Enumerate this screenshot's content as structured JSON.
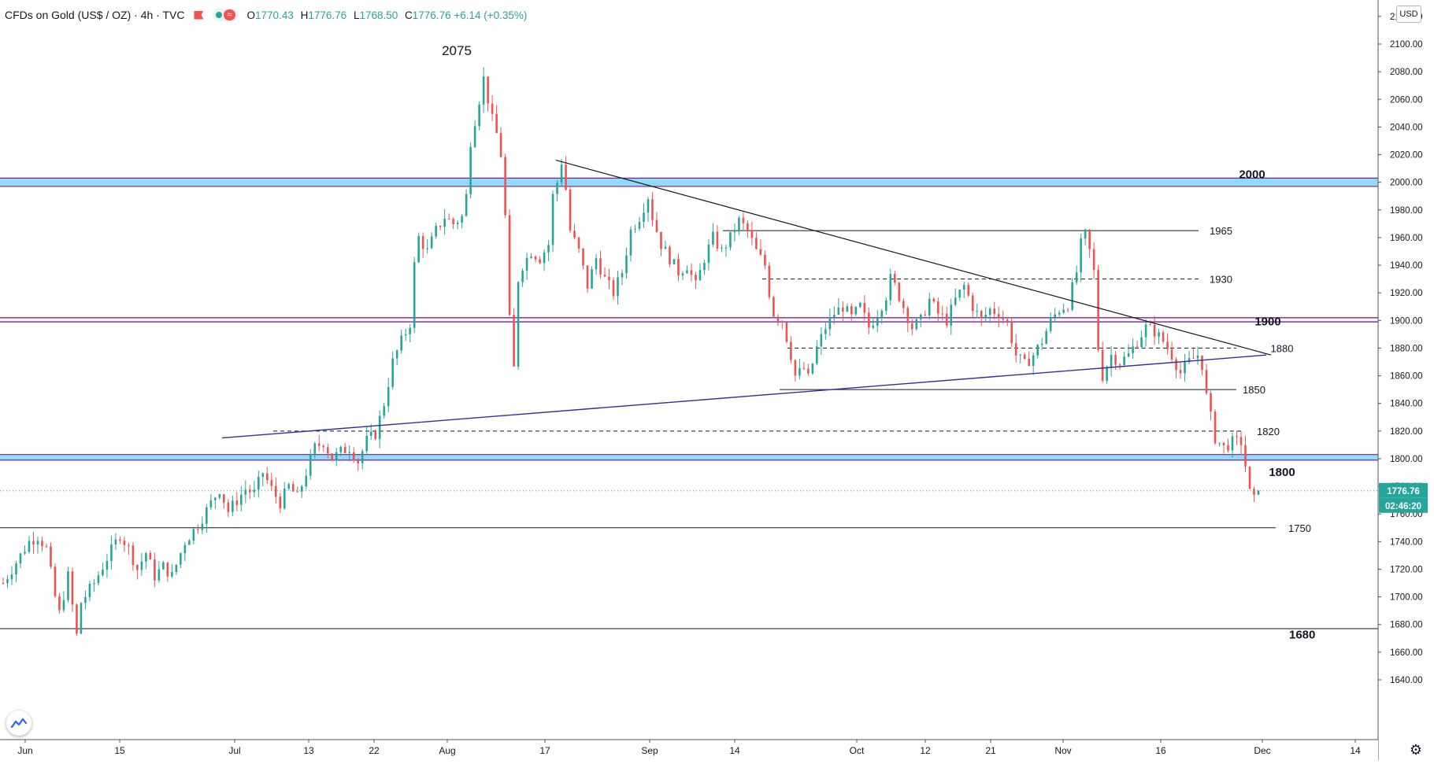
{
  "legend": {
    "symbol": "CFDs on Gold (US$ / OZ) · 4h · TVC",
    "open_label": "O",
    "open": "1770.43",
    "high_label": "H",
    "high": "1776.76",
    "low_label": "L",
    "low": "1768.50",
    "close_label": "C",
    "close": "1776.76",
    "change": "+6.14 (+0.35%)"
  },
  "currency_badge": "USD",
  "price_badge": "1776.76",
  "countdown_badge": "02:46:20",
  "colors": {
    "up": "#26a69a",
    "down": "#ef5350",
    "zone_fill": "#7fd5f5",
    "purple_line": "#7b1fa2",
    "trend_blue": "#2f2f9e",
    "badge_bg": "#26a69a"
  },
  "icons": {
    "logo": "chart-logo-icon",
    "settings": "gear-icon",
    "flag": "flag-icon"
  },
  "chart_data": {
    "type": "candlestick",
    "title": "CFDs on Gold (US$ / OZ)",
    "timeframe": "4h",
    "x_ticks": [
      "Jun",
      "15",
      "Jul",
      "13",
      "22",
      "Aug",
      "17",
      "Sep",
      "14",
      "Oct",
      "12",
      "21",
      "Nov",
      "16",
      "Dec",
      "14"
    ],
    "y_ticks": [
      1640,
      1660,
      1680,
      1700,
      1720,
      1740,
      1760,
      1780,
      1800,
      1820,
      1840,
      1860,
      1880,
      1900,
      1920,
      1940,
      1960,
      1980,
      2000,
      2020,
      2040,
      2060,
      2080,
      2100,
      2120
    ],
    "ylim": [
      1630,
      2125
    ],
    "price_path": [
      [
        0,
        1710
      ],
      [
        3,
        1725
      ],
      [
        6,
        1740
      ],
      [
        8,
        1744
      ],
      [
        10,
        1735
      ],
      [
        12,
        1700
      ],
      [
        13,
        1688
      ],
      [
        15,
        1715
      ],
      [
        17,
        1672
      ],
      [
        18,
        1696
      ],
      [
        21,
        1710
      ],
      [
        24,
        1728
      ],
      [
        27,
        1745
      ],
      [
        29,
        1735
      ],
      [
        31,
        1720
      ],
      [
        33,
        1732
      ],
      [
        35,
        1715
      ],
      [
        37,
        1722
      ],
      [
        39,
        1715
      ],
      [
        42,
        1740
      ],
      [
        45,
        1752
      ],
      [
        48,
        1768
      ],
      [
        50,
        1778
      ],
      [
        52,
        1762
      ],
      [
        54,
        1770
      ],
      [
        56,
        1778
      ],
      [
        58,
        1775
      ],
      [
        60,
        1790
      ],
      [
        62,
        1778
      ],
      [
        64,
        1768
      ],
      [
        66,
        1780
      ],
      [
        68,
        1772
      ],
      [
        70,
        1790
      ],
      [
        72,
        1808
      ],
      [
        74,
        1812
      ],
      [
        76,
        1800
      ],
      [
        78,
        1805
      ],
      [
        80,
        1808
      ],
      [
        82,
        1798
      ],
      [
        84,
        1813
      ],
      [
        86,
        1818
      ],
      [
        88,
        1840
      ],
      [
        90,
        1870
      ],
      [
        92,
        1885
      ],
      [
        94,
        1898
      ],
      [
        95,
        1940
      ],
      [
        96,
        1960
      ],
      [
        98,
        1950
      ],
      [
        100,
        1965
      ],
      [
        102,
        1975
      ],
      [
        104,
        1970
      ],
      [
        106,
        1975
      ],
      [
        107,
        1990
      ],
      [
        108,
        2030
      ],
      [
        109,
        2045
      ],
      [
        110,
        2060
      ],
      [
        111,
        2075
      ],
      [
        112,
        2060
      ],
      [
        113,
        2045
      ],
      [
        114,
        2035
      ],
      [
        115,
        2020
      ],
      [
        116,
        1975
      ],
      [
        117,
        1900
      ],
      [
        118,
        1865
      ],
      [
        119,
        1930
      ],
      [
        120,
        1940
      ],
      [
        122,
        1950
      ],
      [
        124,
        1945
      ],
      [
        126,
        1955
      ],
      [
        127,
        1990
      ],
      [
        128,
        2000
      ],
      [
        129,
        2015
      ],
      [
        130,
        1995
      ],
      [
        131,
        1965
      ],
      [
        133,
        1950
      ],
      [
        135,
        1925
      ],
      [
        137,
        1945
      ],
      [
        139,
        1930
      ],
      [
        141,
        1920
      ],
      [
        143,
        1935
      ],
      [
        145,
        1965
      ],
      [
        147,
        1975
      ],
      [
        149,
        1990
      ],
      [
        150,
        1975
      ],
      [
        152,
        1955
      ],
      [
        154,
        1945
      ],
      [
        156,
        1935
      ],
      [
        158,
        1940
      ],
      [
        160,
        1925
      ],
      [
        162,
        1945
      ],
      [
        164,
        1960
      ],
      [
        166,
        1950
      ],
      [
        168,
        1960
      ],
      [
        170,
        1972
      ],
      [
        172,
        1965
      ],
      [
        174,
        1950
      ],
      [
        176,
        1940
      ],
      [
        177,
        1920
      ],
      [
        178,
        1905
      ],
      [
        180,
        1900
      ],
      [
        182,
        1875
      ],
      [
        183,
        1860
      ],
      [
        185,
        1865
      ],
      [
        186,
        1858
      ],
      [
        188,
        1880
      ],
      [
        190,
        1895
      ],
      [
        192,
        1905
      ],
      [
        194,
        1910
      ],
      [
        196,
        1902
      ],
      [
        198,
        1910
      ],
      [
        200,
        1895
      ],
      [
        202,
        1905
      ],
      [
        204,
        1918
      ],
      [
        205,
        1930
      ],
      [
        206,
        1925
      ],
      [
        208,
        1910
      ],
      [
        210,
        1895
      ],
      [
        212,
        1900
      ],
      [
        214,
        1915
      ],
      [
        216,
        1905
      ],
      [
        218,
        1900
      ],
      [
        220,
        1915
      ],
      [
        222,
        1925
      ],
      [
        224,
        1910
      ],
      [
        226,
        1900
      ],
      [
        228,
        1908
      ],
      [
        230,
        1905
      ],
      [
        232,
        1898
      ],
      [
        234,
        1875
      ],
      [
        236,
        1868
      ],
      [
        238,
        1875
      ],
      [
        240,
        1885
      ],
      [
        242,
        1900
      ],
      [
        244,
        1908
      ],
      [
        246,
        1912
      ],
      [
        248,
        1935
      ],
      [
        249,
        1955
      ],
      [
        250,
        1962
      ],
      [
        251,
        1950
      ],
      [
        252,
        1935
      ],
      [
        253,
        1880
      ],
      [
        254,
        1860
      ],
      [
        256,
        1875
      ],
      [
        258,
        1870
      ],
      [
        260,
        1875
      ],
      [
        262,
        1885
      ],
      [
        264,
        1895
      ],
      [
        266,
        1892
      ],
      [
        268,
        1885
      ],
      [
        270,
        1875
      ],
      [
        272,
        1862
      ],
      [
        274,
        1870
      ],
      [
        276,
        1875
      ],
      [
        277,
        1868
      ],
      [
        278,
        1845
      ],
      [
        279,
        1830
      ],
      [
        280,
        1815
      ],
      [
        282,
        1808
      ],
      [
        284,
        1812
      ],
      [
        286,
        1812
      ],
      [
        287,
        1795
      ],
      [
        288,
        1775
      ],
      [
        289,
        1770
      ],
      [
        290,
        1776.76
      ]
    ],
    "annotations": [
      {
        "text": "2075",
        "kind": "peak",
        "price": 2075
      },
      {
        "text": "2000",
        "kind": "zone",
        "price": 2000
      },
      {
        "text": "1965",
        "kind": "level",
        "price": 1965
      },
      {
        "text": "1930",
        "kind": "level",
        "price": 1930
      },
      {
        "text": "1900",
        "kind": "zone",
        "price": 1900
      },
      {
        "text": "1880",
        "kind": "level",
        "price": 1880
      },
      {
        "text": "1850",
        "kind": "level",
        "price": 1850
      },
      {
        "text": "1820",
        "kind": "level",
        "price": 1820
      },
      {
        "text": "1800",
        "kind": "zone",
        "price": 1800
      },
      {
        "text": "1750",
        "kind": "level",
        "price": 1750
      },
      {
        "text": "1680",
        "kind": "level",
        "price": 1680
      }
    ],
    "current_price": 1776.76,
    "grid": false,
    "legend_position": "top-left"
  }
}
